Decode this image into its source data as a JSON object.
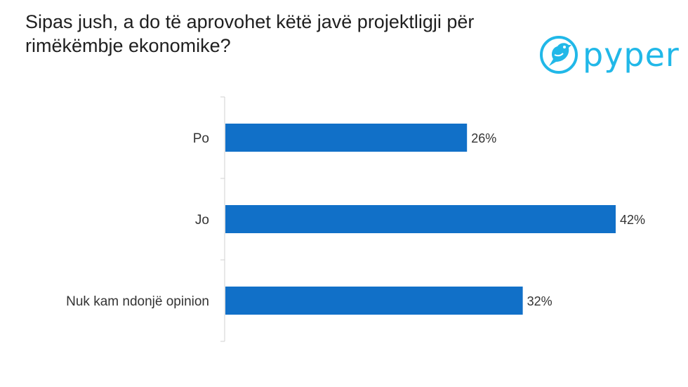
{
  "question": "Sipas jush, a do të aprovohet këtë javë projektligji për rimëkëmbje ekonomike?",
  "logo": {
    "text": "pyper",
    "color": "#21b8e8"
  },
  "chart_data": {
    "type": "bar",
    "orientation": "horizontal",
    "categories": [
      "Po",
      "Jo",
      "Nuk kam ndonjë opinion"
    ],
    "values": [
      26,
      42,
      32
    ],
    "value_labels": [
      "26%",
      "42%",
      "32%"
    ],
    "unit": "%",
    "xlim": [
      0,
      42
    ],
    "bar_color": "#1170c8",
    "grid": false,
    "legend": "none"
  }
}
